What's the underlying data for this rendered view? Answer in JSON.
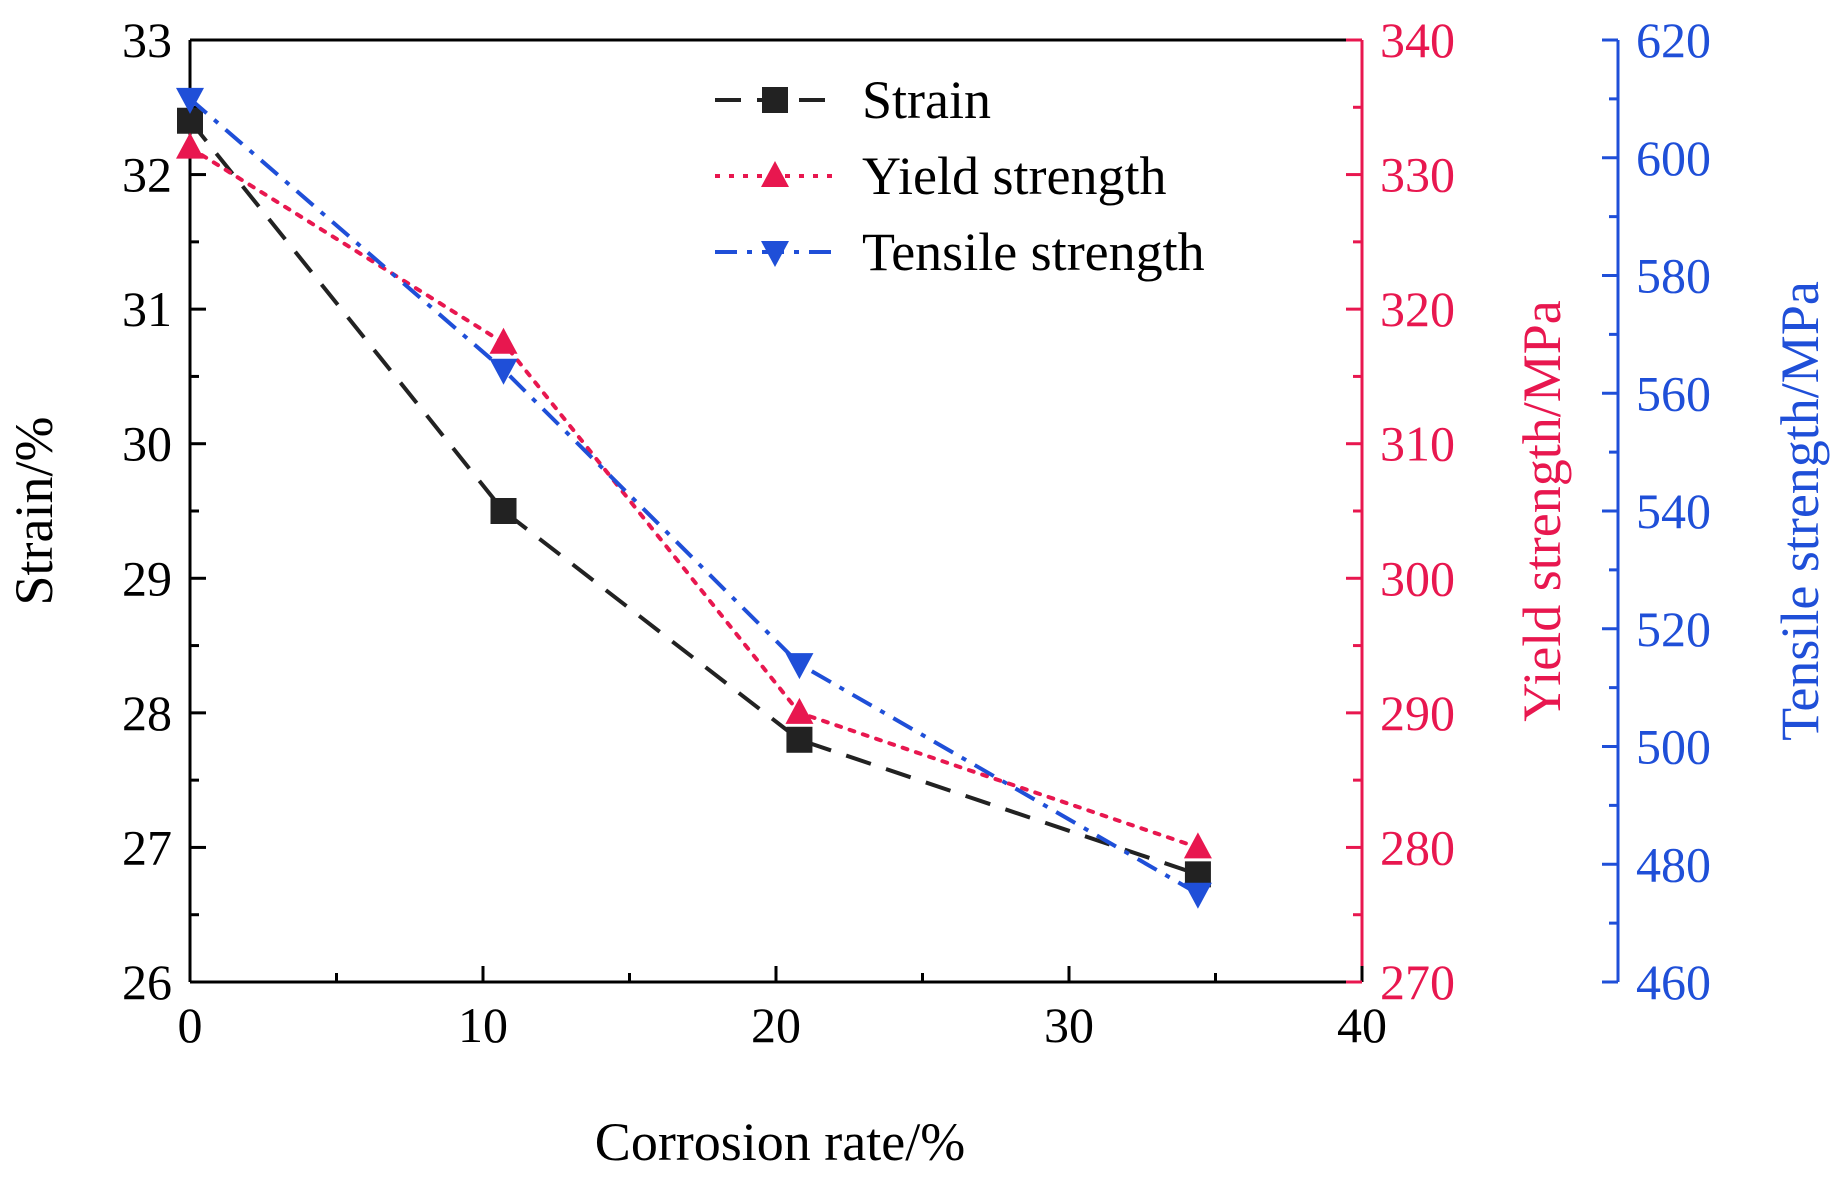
{
  "chart_data": {
    "type": "line",
    "title": "",
    "xlabel": "Corrosion rate/%",
    "xlim": [
      0,
      40
    ],
    "x_ticks": [
      "0",
      "10",
      "20",
      "30",
      "40"
    ],
    "axes": {
      "left": {
        "label": "Strain/%",
        "range": [
          26,
          33
        ],
        "ticks": [
          "26",
          "27",
          "28",
          "29",
          "30",
          "31",
          "32",
          "33"
        ],
        "color": "#000000"
      },
      "right_inner": {
        "label": "Yield strength/MPa",
        "range": [
          270,
          340
        ],
        "ticks": [
          "270",
          "280",
          "290",
          "300",
          "310",
          "320",
          "330",
          "340"
        ],
        "color": "#e8174f"
      },
      "right_outer": {
        "label": "Tensile strength/MPa",
        "range": [
          460,
          620
        ],
        "ticks": [
          "460",
          "480",
          "500",
          "520",
          "540",
          "560",
          "580",
          "600",
          "620"
        ],
        "color": "#1f4fd8"
      }
    },
    "series": [
      {
        "name": "Strain",
        "axis": "left",
        "color": "#222222",
        "marker": "square",
        "line": "dash",
        "x": [
          0,
          10.7,
          20.8,
          34.4
        ],
        "y": [
          32.4,
          29.5,
          27.8,
          26.8
        ]
      },
      {
        "name": "Yield strength",
        "axis": "right_inner",
        "color": "#e8174f",
        "marker": "triangle-up",
        "line": "dot",
        "x": [
          0,
          10.7,
          20.8,
          34.4
        ],
        "y": [
          332,
          317.5,
          290,
          280
        ]
      },
      {
        "name": "Tensile strength",
        "axis": "right_outer",
        "color": "#1f4fd8",
        "marker": "triangle-down",
        "line": "dashdot",
        "x": [
          0,
          10.7,
          20.8,
          34.4
        ],
        "y": [
          610,
          564,
          514,
          475
        ]
      }
    ],
    "legend": "top-center",
    "grid": false
  }
}
